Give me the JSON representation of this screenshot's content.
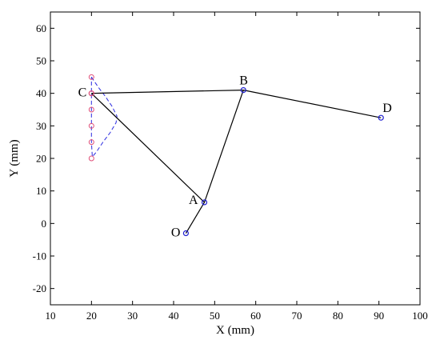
{
  "chart_data": {
    "type": "line",
    "xlabel": "X (mm)",
    "ylabel": "Y (mm)",
    "xlim": [
      10,
      100
    ],
    "ylim": [
      -25,
      65
    ],
    "xticks": [
      10,
      20,
      30,
      40,
      50,
      60,
      70,
      80,
      90,
      100
    ],
    "yticks": [
      -20,
      -10,
      0,
      10,
      20,
      30,
      40,
      50,
      60
    ],
    "grid": false,
    "points": [
      {
        "label": "O",
        "x": 43,
        "y": -3
      },
      {
        "label": "A",
        "x": 47.5,
        "y": 6.5
      },
      {
        "label": "B",
        "x": 57,
        "y": 41
      },
      {
        "label": "C",
        "x": 20,
        "y": 40
      },
      {
        "label": "D",
        "x": 90.5,
        "y": 32.5
      }
    ],
    "links": [
      [
        "O",
        "A"
      ],
      [
        "A",
        "B"
      ],
      [
        "B",
        "C"
      ],
      [
        "B",
        "D"
      ],
      [
        "A",
        "C"
      ]
    ],
    "path_points": [
      {
        "x": 20,
        "y": 45
      },
      {
        "x": 20,
        "y": 40
      },
      {
        "x": 20,
        "y": 35
      },
      {
        "x": 20,
        "y": 30
      },
      {
        "x": 20,
        "y": 25
      },
      {
        "x": 20,
        "y": 20
      }
    ],
    "dashed_path": [
      {
        "x": 20,
        "y": 45
      },
      {
        "x": 21.6,
        "y": 42
      },
      {
        "x": 23.4,
        "y": 39
      },
      {
        "x": 25,
        "y": 36
      },
      {
        "x": 26.2,
        "y": 33
      },
      {
        "x": 26,
        "y": 31
      },
      {
        "x": 24.6,
        "y": 28
      },
      {
        "x": 22.8,
        "y": 25
      },
      {
        "x": 21.2,
        "y": 22
      },
      {
        "x": 20.2,
        "y": 20.5
      },
      {
        "x": 20,
        "y": 25
      },
      {
        "x": 20,
        "y": 30
      },
      {
        "x": 20,
        "y": 35
      },
      {
        "x": 20,
        "y": 40
      },
      {
        "x": 20,
        "y": 45
      }
    ],
    "colors": {
      "link": "#000000",
      "joint": "#1f1fd0",
      "path_point": "#e0507a",
      "dashed_path": "#2b2be0"
    }
  }
}
